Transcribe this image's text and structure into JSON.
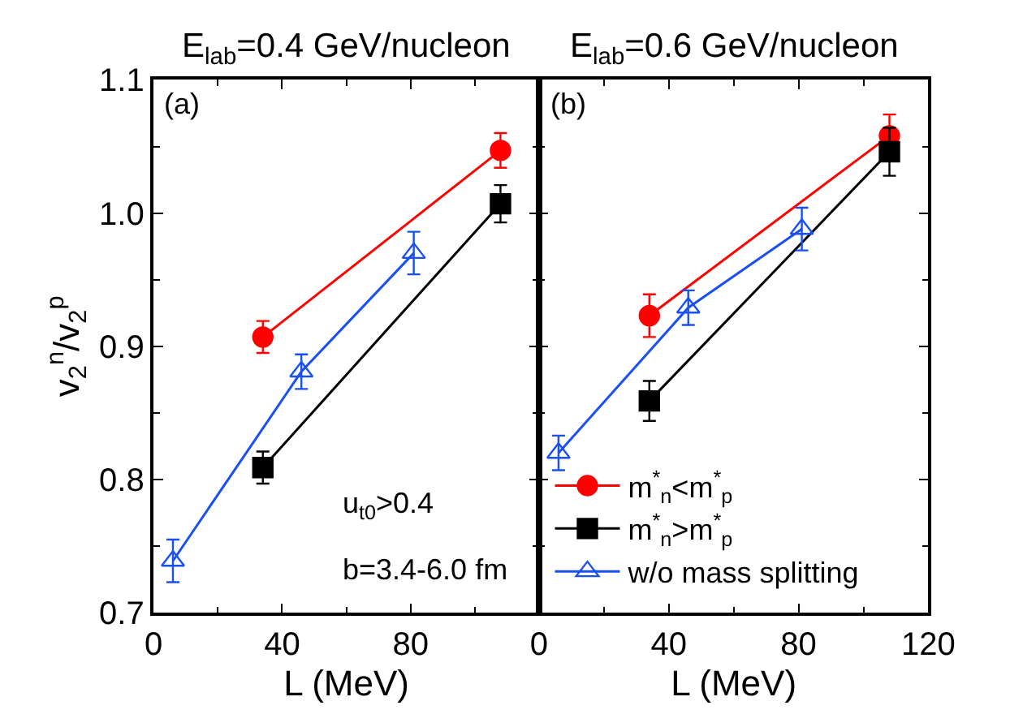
{
  "chart_data": [
    {
      "type": "line",
      "title": "E$_{lab}$=0.4 GeV/nucleon",
      "xlabel": "L (MeV)",
      "ylabel": "v$_{2}$$^{n}$/v$_{2}$$^{p}$",
      "xlim": [
        0,
        120
      ],
      "xticks": [
        0,
        40,
        80
      ],
      "ylim": [
        0.7,
        1.1
      ],
      "yticks": [
        0.7,
        0.8,
        0.9,
        {
          "value": 1,
          "label": "1.0"
        },
        1.1
      ],
      "legend": false,
      "line_style": "solid",
      "annotations": [
        "(a)",
        "u$_{t0}$>0.4",
        "b=3.4-6.0 fm"
      ],
      "series": [
        {
          "color": "#ff0000",
          "marker": "circle",
          "x": [
            34,
            108
          ],
          "values": [
            0.907,
            1.047
          ],
          "errors": [
            0.012,
            0.013
          ]
        },
        {
          "color": "#000000",
          "marker": "square",
          "x": [
            34,
            108
          ],
          "values": [
            0.809,
            1.007
          ],
          "errors": [
            0.012,
            0.014
          ]
        },
        {
          "color": "#1a4ff0",
          "marker": "triangle",
          "x": [
            6,
            46,
            81
          ],
          "values": [
            0.739,
            0.881,
            0.97
          ],
          "errors": [
            0.016,
            0.013,
            0.016
          ]
        }
      ]
    },
    {
      "type": "line",
      "title": "E$_{lab}$=0.6 GeV/nucleon",
      "xlabel": "L (MeV)",
      "xlim": [
        0,
        120
      ],
      "xticks": [
        0,
        40,
        80,
        120
      ],
      "ylim": [
        0.7,
        1.1
      ],
      "yticks": [
        0.7,
        0.8,
        0.9,
        1.0,
        1.1
      ],
      "legend": "bottom left",
      "line_style": "solid",
      "tick_labels": "x",
      "annotations": [
        "(b)"
      ],
      "series": [
        {
          "name": "m$^{*}$$_{n}$<m$^{*}$$_{p}$",
          "color": "#ff0000",
          "marker": "circle",
          "x": [
            34,
            108
          ],
          "values": [
            0.923,
            1.058
          ],
          "errors": [
            0.016,
            0.016
          ]
        },
        {
          "name": "m$^{*}$$_{n}$>m$^{*}$$_{p}$",
          "color": "#000000",
          "marker": "square",
          "x": [
            34,
            108
          ],
          "values": [
            0.859,
            1.046
          ],
          "errors": [
            0.015,
            0.018
          ]
        },
        {
          "name": "w/o mass splitting",
          "color": "#1a4ff0",
          "marker": "triangle",
          "x": [
            6,
            46,
            81
          ],
          "values": [
            0.82,
            0.929,
            0.988
          ],
          "errors": [
            0.013,
            0.013,
            0.016
          ]
        }
      ]
    }
  ]
}
